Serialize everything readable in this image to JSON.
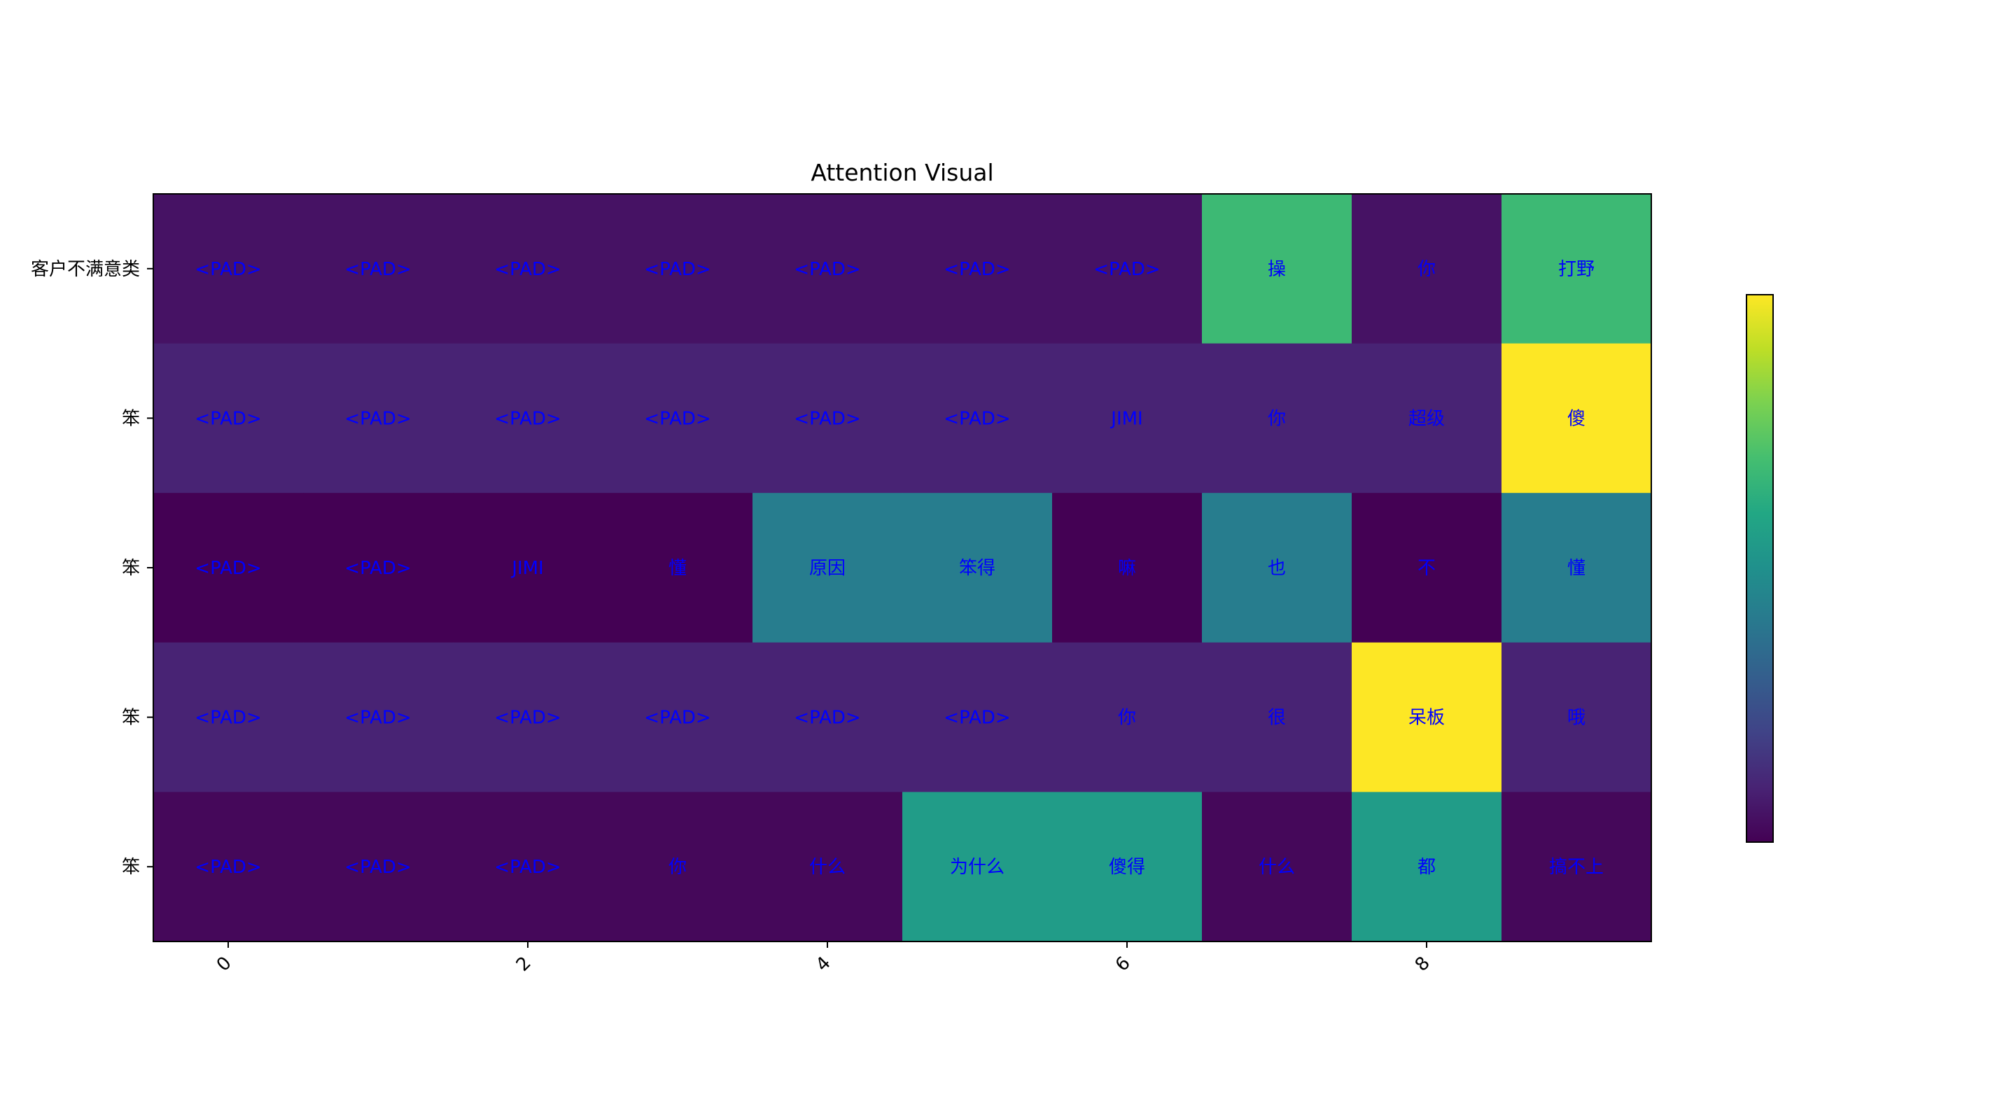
{
  "chart_data": {
    "type": "heatmap",
    "title": "Attention Visual",
    "colormap": "viridis",
    "text_color": "#0000ff",
    "row_labels": [
      "客户不满意类",
      "笨",
      "笨",
      "笨",
      "笨"
    ],
    "x_ticks": [
      0,
      2,
      4,
      6,
      8
    ],
    "tokens": [
      [
        "<PAD>",
        "<PAD>",
        "<PAD>",
        "<PAD>",
        "<PAD>",
        "<PAD>",
        "<PAD>",
        "操",
        "你",
        "打野"
      ],
      [
        "<PAD>",
        "<PAD>",
        "<PAD>",
        "<PAD>",
        "<PAD>",
        "<PAD>",
        "JIMI",
        "你",
        "超级",
        "傻"
      ],
      [
        "<PAD>",
        "<PAD>",
        "JIMI",
        "懂",
        "原因",
        "笨得",
        "嘛",
        "也",
        "不",
        "懂"
      ],
      [
        "<PAD>",
        "<PAD>",
        "<PAD>",
        "<PAD>",
        "<PAD>",
        "<PAD>",
        "你",
        "很",
        "呆板",
        "哦"
      ],
      [
        "<PAD>",
        "<PAD>",
        "<PAD>",
        "你",
        "什么",
        "为什么",
        "傻得",
        "什么",
        "都",
        "搞不上"
      ]
    ],
    "values": [
      [
        0.05,
        0.05,
        0.05,
        0.05,
        0.05,
        0.05,
        0.05,
        0.68,
        0.05,
        0.68
      ],
      [
        0.1,
        0.1,
        0.1,
        0.1,
        0.1,
        0.1,
        0.1,
        0.1,
        0.1,
        1.0
      ],
      [
        0.0,
        0.0,
        0.0,
        0.0,
        0.42,
        0.42,
        0.0,
        0.42,
        0.0,
        0.42
      ],
      [
        0.1,
        0.1,
        0.1,
        0.1,
        0.1,
        0.1,
        0.1,
        0.1,
        1.0,
        0.1
      ],
      [
        0.02,
        0.02,
        0.02,
        0.02,
        0.02,
        0.55,
        0.55,
        0.02,
        0.55,
        0.02
      ]
    ],
    "colorbar": true
  }
}
